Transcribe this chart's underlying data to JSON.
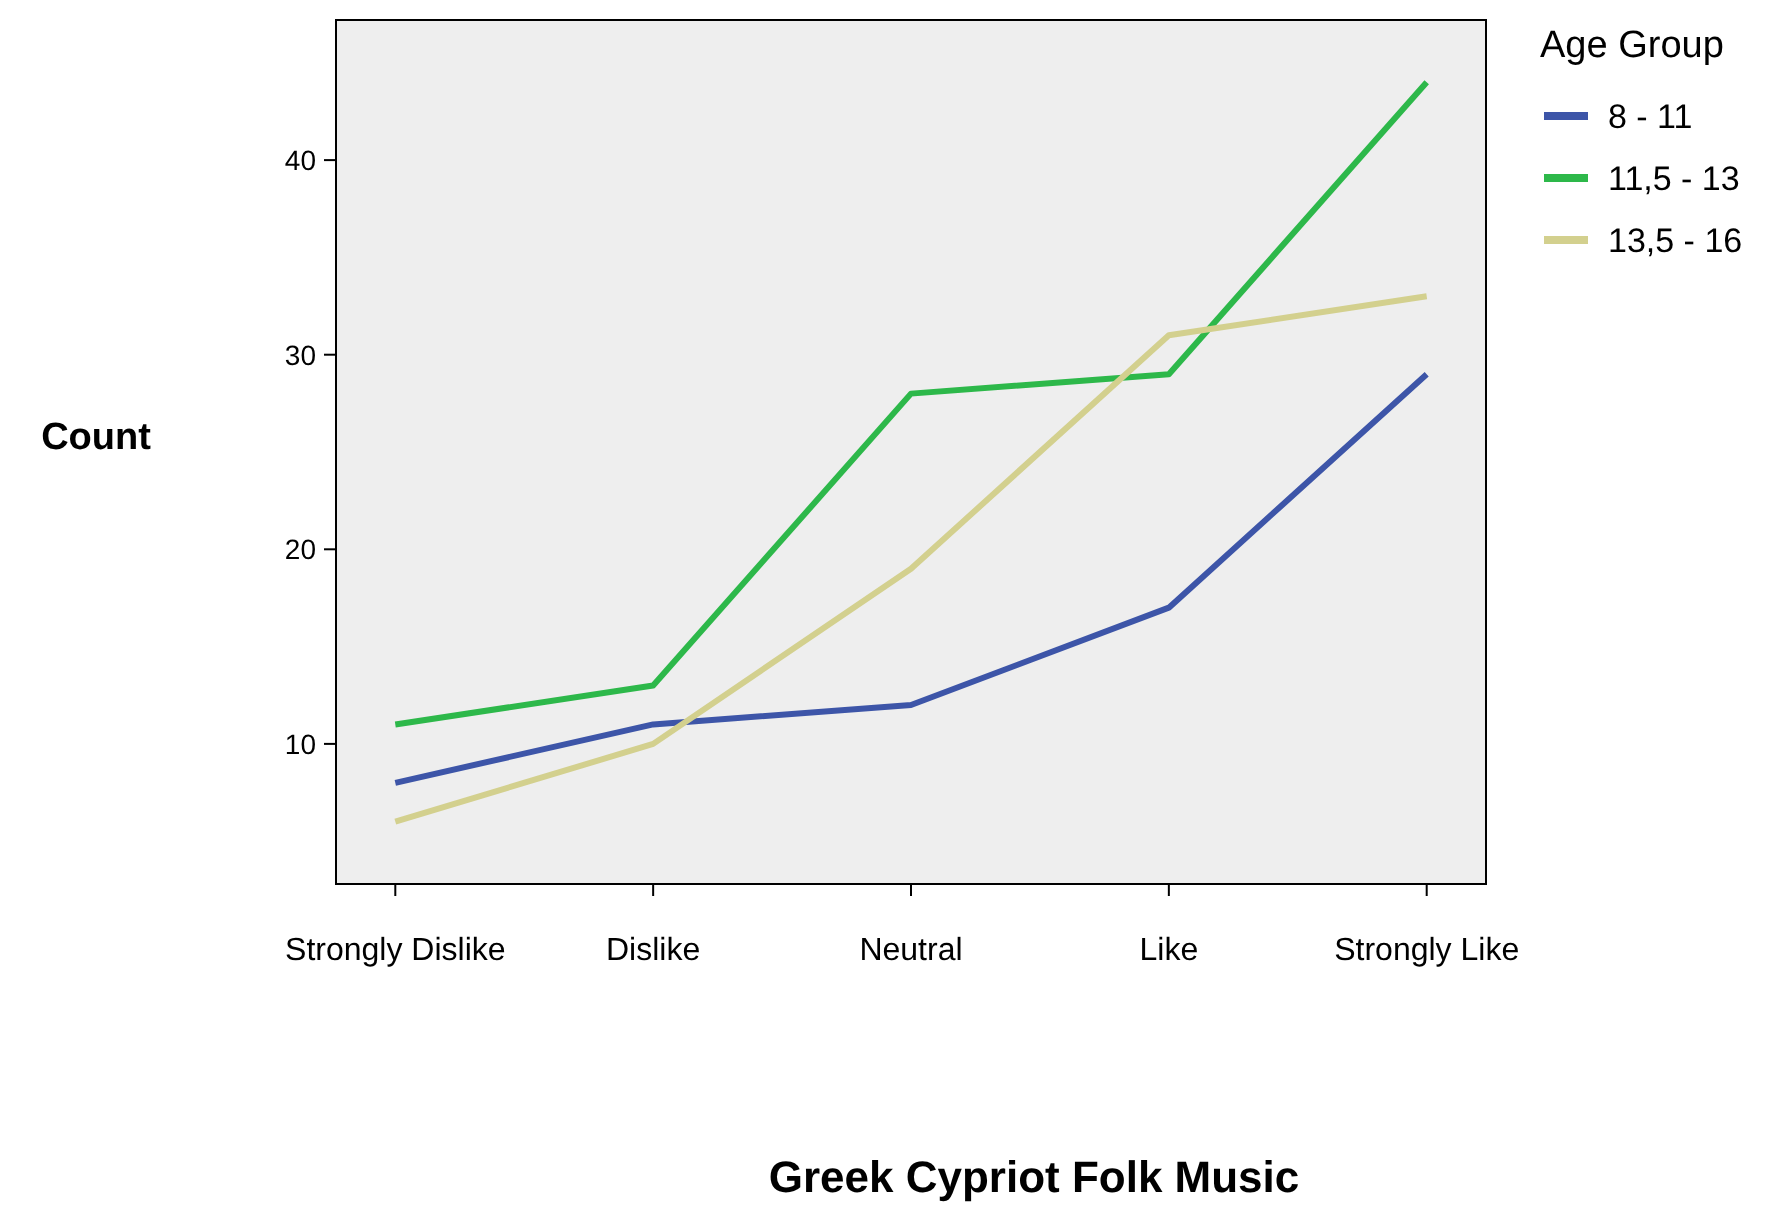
{
  "chart_data": {
    "type": "line",
    "xlabel": "Greek Cypriot Folk Music",
    "ylabel": "Count",
    "legend_title": "Age Group",
    "legend": "top right",
    "grid": false,
    "categories": [
      "Strongly Dislike",
      "Dislike",
      "Neutral",
      "Like",
      "Strongly Like"
    ],
    "ylim": [
      2.8,
      47.2
    ],
    "yticks": [
      10,
      20,
      30,
      40
    ],
    "series": [
      {
        "name": "8 - 11",
        "color": "#3d55a8",
        "values": [
          8,
          11,
          12,
          17,
          29
        ]
      },
      {
        "name": "11,5 - 13",
        "color": "#2db84a",
        "values": [
          11,
          13,
          28,
          29,
          44
        ]
      },
      {
        "name": "13,5 - 16",
        "color": "#d3d08e",
        "values": [
          6,
          10,
          19,
          31,
          33
        ]
      }
    ]
  }
}
